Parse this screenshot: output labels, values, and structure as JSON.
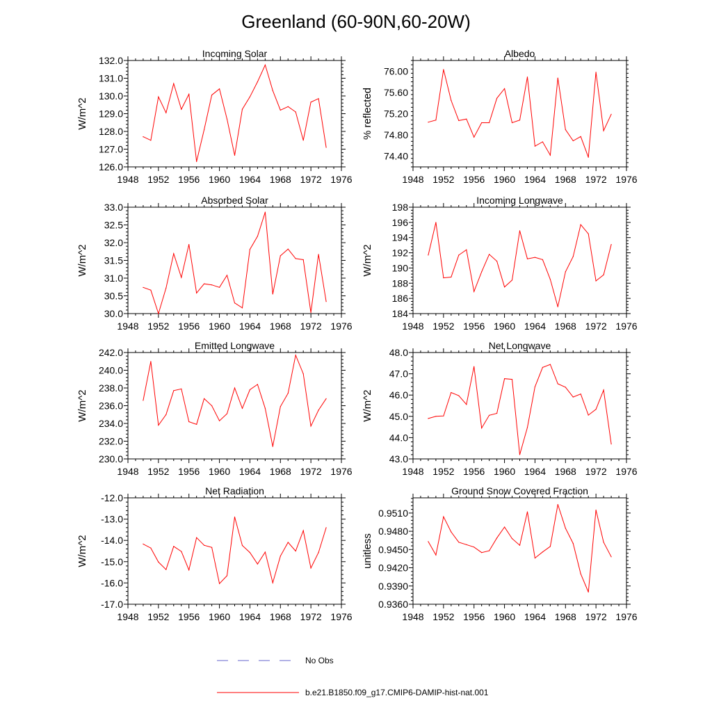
{
  "title": "Greenland (60-90N,60-20W)",
  "colors": {
    "series": "#ff0000",
    "obs": "#0000ff",
    "axis": "#000000"
  },
  "legend": [
    {
      "label": "No Obs",
      "style": "dashed",
      "color": "#6666cc"
    },
    {
      "label": "b.e21.B1850.f09_g17.CMIP6-DAMIP-hist-nat.001",
      "style": "solid",
      "color": "#ff0000"
    }
  ],
  "chart_data": [
    {
      "type": "line",
      "title": "Incoming Solar",
      "ylabel": "W/m^2",
      "xlim": [
        1948,
        1976
      ],
      "ylim": [
        126.0,
        132.0
      ],
      "yticks": [
        "126.0",
        "127.0",
        "128.0",
        "129.0",
        "130.0",
        "131.0",
        "132.0"
      ],
      "xticks": [
        "1948",
        "1952",
        "1956",
        "1960",
        "1964",
        "1968",
        "1972",
        "1976"
      ],
      "x": [
        1950,
        1951,
        1952,
        1953,
        1954,
        1955,
        1956,
        1957,
        1958,
        1959,
        1960,
        1961,
        1962,
        1963,
        1964,
        1965,
        1966,
        1967,
        1968,
        1969,
        1970,
        1971,
        1972,
        1973,
        1974
      ],
      "series": [
        {
          "values": [
            127.7,
            127.5,
            129.95,
            129.05,
            130.7,
            129.25,
            130.1,
            126.3,
            128.1,
            130.05,
            130.4,
            128.7,
            126.65,
            129.25,
            129.95,
            130.8,
            131.75,
            130.3,
            129.2,
            129.4,
            129.1,
            127.5,
            129.65,
            129.85,
            127.1
          ]
        }
      ]
    },
    {
      "type": "line",
      "title": "Albedo",
      "ylabel": "% reflected",
      "xlim": [
        1948,
        1976
      ],
      "ylim": [
        74.2,
        76.2
      ],
      "yticks": [
        "74.40",
        "74.80",
        "75.20",
        "75.60",
        "76.00"
      ],
      "xticks": [
        "1948",
        "1952",
        "1956",
        "1960",
        "1964",
        "1968",
        "1972",
        "1976"
      ],
      "x": [
        1950,
        1951,
        1952,
        1953,
        1954,
        1955,
        1956,
        1957,
        1958,
        1959,
        1960,
        1961,
        1962,
        1963,
        1964,
        1965,
        1966,
        1967,
        1968,
        1969,
        1970,
        1971,
        1972,
        1973,
        1974
      ],
      "series": [
        {
          "values": [
            75.04,
            75.08,
            76.03,
            75.45,
            75.07,
            75.1,
            74.76,
            75.03,
            75.03,
            75.49,
            75.67,
            75.03,
            75.08,
            75.89,
            74.59,
            74.67,
            74.42,
            75.87,
            74.9,
            74.69,
            74.77,
            74.38,
            75.98,
            74.88,
            75.19
          ]
        }
      ]
    },
    {
      "type": "line",
      "title": "Absorbed Solar",
      "ylabel": "W/m^2",
      "xlim": [
        1948,
        1976
      ],
      "ylim": [
        30.0,
        33.0
      ],
      "yticks": [
        "30.0",
        "30.5",
        "31.0",
        "31.5",
        "32.0",
        "32.5",
        "33.0"
      ],
      "xticks": [
        "1948",
        "1952",
        "1956",
        "1960",
        "1964",
        "1968",
        "1972",
        "1976"
      ],
      "x": [
        1950,
        1951,
        1952,
        1953,
        1954,
        1955,
        1956,
        1957,
        1958,
        1959,
        1960,
        1961,
        1962,
        1963,
        1964,
        1965,
        1966,
        1967,
        1968,
        1969,
        1970,
        1971,
        1972,
        1973,
        1974
      ],
      "series": [
        {
          "values": [
            30.74,
            30.66,
            30.0,
            30.72,
            31.69,
            31.02,
            31.95,
            30.58,
            30.84,
            30.81,
            30.74,
            31.08,
            30.3,
            30.16,
            31.81,
            32.18,
            32.86,
            30.55,
            31.63,
            31.82,
            31.55,
            31.52,
            30.03,
            31.67,
            30.34
          ]
        }
      ]
    },
    {
      "type": "line",
      "title": "Incoming Longwave",
      "ylabel": "W/m^2",
      "xlim": [
        1948,
        1976
      ],
      "ylim": [
        184,
        198
      ],
      "yticks": [
        "184",
        "186",
        "188",
        "190",
        "192",
        "194",
        "196",
        "198"
      ],
      "xticks": [
        "1948",
        "1952",
        "1956",
        "1960",
        "1964",
        "1968",
        "1972",
        "1976"
      ],
      "x": [
        1950,
        1951,
        1952,
        1953,
        1954,
        1955,
        1956,
        1957,
        1958,
        1959,
        1960,
        1961,
        1962,
        1963,
        1964,
        1965,
        1966,
        1967,
        1968,
        1969,
        1970,
        1971,
        1972,
        1973,
        1974
      ],
      "series": [
        {
          "values": [
            191.7,
            196.0,
            188.7,
            188.8,
            191.7,
            192.4,
            186.9,
            189.5,
            191.8,
            190.9,
            187.5,
            188.4,
            194.9,
            191.2,
            191.4,
            191.1,
            188.5,
            184.9,
            189.5,
            191.5,
            195.7,
            194.5,
            188.3,
            189.1,
            193.1
          ]
        }
      ]
    },
    {
      "type": "line",
      "title": "Emitted Longwave",
      "ylabel": "W/m^2",
      "xlim": [
        1948,
        1976
      ],
      "ylim": [
        230.0,
        242.0
      ],
      "yticks": [
        "230.0",
        "232.0",
        "234.0",
        "236.0",
        "238.0",
        "240.0",
        "242.0"
      ],
      "xticks": [
        "1948",
        "1952",
        "1956",
        "1960",
        "1964",
        "1968",
        "1972",
        "1976"
      ],
      "x": [
        1950,
        1951,
        1952,
        1953,
        1954,
        1955,
        1956,
        1957,
        1958,
        1959,
        1960,
        1961,
        1962,
        1963,
        1964,
        1965,
        1966,
        1967,
        1968,
        1969,
        1970,
        1971,
        1972,
        1973,
        1974
      ],
      "series": [
        {
          "values": [
            236.6,
            241.0,
            233.8,
            235.0,
            237.7,
            237.9,
            234.2,
            233.9,
            236.8,
            236.0,
            234.3,
            235.1,
            238.0,
            235.7,
            237.8,
            238.4,
            235.7,
            231.4,
            235.9,
            237.4,
            241.7,
            239.6,
            233.7,
            235.5,
            236.8
          ]
        }
      ]
    },
    {
      "type": "line",
      "title": "Net Longwave",
      "ylabel": "W/m^2",
      "xlim": [
        1948,
        1976
      ],
      "ylim": [
        43.0,
        48.0
      ],
      "yticks": [
        "43.0",
        "44.0",
        "45.0",
        "46.0",
        "47.0",
        "48.0"
      ],
      "xticks": [
        "1948",
        "1952",
        "1956",
        "1960",
        "1964",
        "1968",
        "1972",
        "1976"
      ],
      "x": [
        1950,
        1951,
        1952,
        1953,
        1954,
        1955,
        1956,
        1957,
        1958,
        1959,
        1960,
        1961,
        1962,
        1963,
        1964,
        1965,
        1966,
        1967,
        1968,
        1969,
        1970,
        1971,
        1972,
        1973,
        1974
      ],
      "series": [
        {
          "values": [
            44.9,
            45.0,
            45.02,
            46.12,
            45.97,
            45.56,
            47.34,
            44.45,
            45.05,
            45.14,
            46.77,
            46.74,
            43.2,
            44.48,
            46.39,
            47.3,
            47.44,
            46.53,
            46.37,
            45.91,
            46.05,
            45.06,
            45.33,
            46.24,
            43.7
          ]
        }
      ]
    },
    {
      "type": "line",
      "title": "Net Radiation",
      "ylabel": "W/m^2",
      "xlim": [
        1948,
        1976
      ],
      "ylim": [
        -17.0,
        -12.0
      ],
      "yticks": [
        "-17.0",
        "-16.0",
        "-15.0",
        "-14.0",
        "-13.0",
        "-12.0"
      ],
      "xticks": [
        "1948",
        "1952",
        "1956",
        "1960",
        "1964",
        "1968",
        "1972",
        "1976"
      ],
      "x": [
        1950,
        1951,
        1952,
        1953,
        1954,
        1955,
        1956,
        1957,
        1958,
        1959,
        1960,
        1961,
        1962,
        1963,
        1964,
        1965,
        1966,
        1967,
        1968,
        1969,
        1970,
        1971,
        1972,
        1973,
        1974
      ],
      "series": [
        {
          "values": [
            -14.17,
            -14.36,
            -15.02,
            -15.37,
            -14.28,
            -14.52,
            -15.39,
            -13.87,
            -14.23,
            -14.33,
            -16.03,
            -15.66,
            -12.9,
            -14.24,
            -14.57,
            -15.11,
            -14.55,
            -15.99,
            -14.74,
            -14.09,
            -14.5,
            -13.54,
            -15.3,
            -14.57,
            -13.4
          ]
        }
      ]
    },
    {
      "type": "line",
      "title": "Ground Snow Covered Fraction",
      "ylabel": "unitless",
      "xlim": [
        1948,
        1976
      ],
      "ylim": [
        0.936,
        0.9535
      ],
      "yticks": [
        "0.9360",
        "0.9390",
        "0.9420",
        "0.9450",
        "0.9480",
        "0.9510"
      ],
      "xticks": [
        "1948",
        "1952",
        "1956",
        "1960",
        "1964",
        "1968",
        "1972",
        "1976"
      ],
      "x": [
        1950,
        1951,
        1952,
        1953,
        1954,
        1955,
        1956,
        1957,
        1958,
        1959,
        1960,
        1961,
        1962,
        1963,
        1964,
        1965,
        1966,
        1967,
        1968,
        1969,
        1970,
        1971,
        1972,
        1973,
        1974
      ],
      "series": [
        {
          "values": [
            0.9463,
            0.9441,
            0.9504,
            0.9479,
            0.9462,
            0.9458,
            0.9454,
            0.9445,
            0.9448,
            0.9469,
            0.9487,
            0.9468,
            0.9457,
            0.9512,
            0.9436,
            0.9446,
            0.9455,
            0.9524,
            0.9485,
            0.946,
            0.941,
            0.938,
            0.9515,
            0.9462,
            0.9438
          ]
        }
      ]
    }
  ]
}
